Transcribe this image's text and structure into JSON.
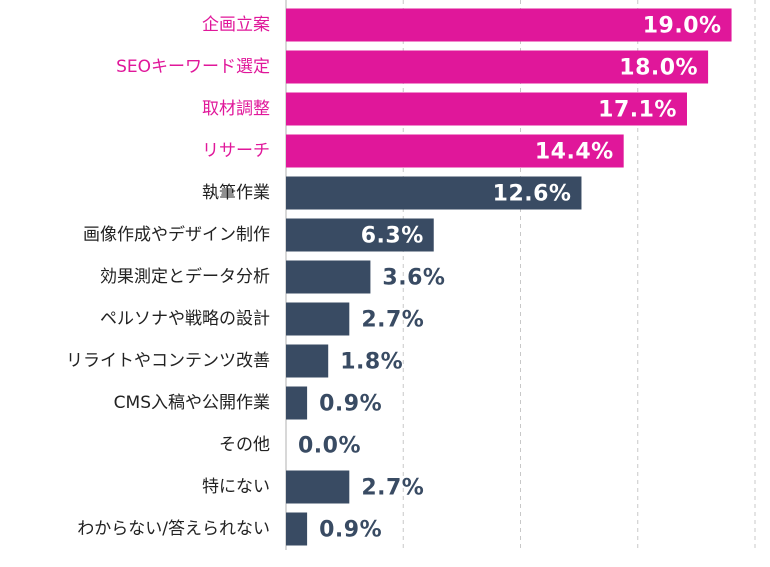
{
  "colors": {
    "highlight": "#e0179a",
    "default": "#394b63",
    "label_default": "#222222",
    "grid": "#c8c8c8",
    "value_inside": "#ffffff"
  },
  "chart_data": {
    "type": "bar",
    "orientation": "horizontal",
    "xlim": [
      0,
      20
    ],
    "grid": true,
    "categories": [
      "企画立案",
      "SEOキーワード選定",
      "取材調整",
      "リサーチ",
      "執筆作業",
      "画像作成やデザイン制作",
      "効果測定とデータ分析",
      "ペルソナや戦略の設計",
      "リライトやコンテンツ改善",
      "CMS入稿や公開作業",
      "その他",
      "特にない",
      "わからない/答えられない"
    ],
    "values": [
      19.0,
      18.0,
      17.1,
      14.4,
      12.6,
      6.3,
      3.6,
      2.7,
      1.8,
      0.9,
      0.0,
      2.7,
      0.9
    ],
    "value_labels": [
      "19.0%",
      "18.0%",
      "17.1%",
      "14.4%",
      "12.6%",
      "6.3%",
      "3.6%",
      "2.7%",
      "1.8%",
      "0.9%",
      "0.0%",
      "2.7%",
      "0.9%"
    ],
    "highlighted": [
      true,
      true,
      true,
      true,
      false,
      false,
      false,
      false,
      false,
      false,
      false,
      false,
      false
    ]
  }
}
